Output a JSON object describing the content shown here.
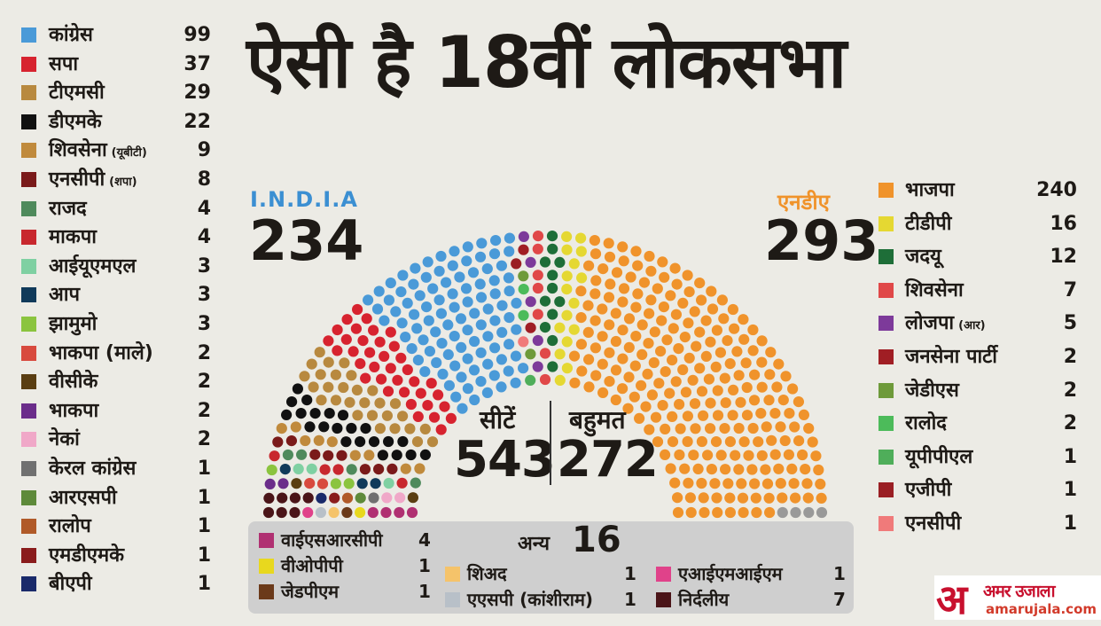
{
  "title": "ऐसी है 18वीं लोकसभा",
  "india": {
    "label": "I.N.D.I.A",
    "total": "234"
  },
  "nda": {
    "label": "एनडीए",
    "total": "293"
  },
  "center": {
    "seats_label": "सीटें",
    "seats": "543",
    "majority_label": "बहुमत",
    "majority": "272"
  },
  "others_box": {
    "label": "अन्य",
    "total": "16"
  },
  "logo": {
    "mark": "अ",
    "name": "अमर उजाला",
    "url": "amarujala.com"
  },
  "chart_data": {
    "type": "parliament-seats",
    "title": "ऐसी है 18वीं लोकसभा",
    "total_seats": 543,
    "majority": 272,
    "blocs": [
      {
        "name": "I.N.D.I.A",
        "total": 234,
        "color": "#3b8fd2"
      },
      {
        "name": "एनडीए",
        "total": 293,
        "color": "#f0932b"
      },
      {
        "name": "अन्य",
        "total": 16
      }
    ],
    "india_parties": [
      {
        "name": "कांग्रेस",
        "seats": 99,
        "color": "#4a9ad8"
      },
      {
        "name": "सपा",
        "seats": 37,
        "color": "#d7232f"
      },
      {
        "name": "टीएमसी",
        "seats": 29,
        "color": "#b8893f"
      },
      {
        "name": "डीएमके",
        "seats": 22,
        "color": "#111111"
      },
      {
        "name": "शिवसेना",
        "note": "(यूबीटी)",
        "seats": 9,
        "color": "#c08a3c"
      },
      {
        "name": "एनसीपी",
        "note": "(शपा)",
        "seats": 8,
        "color": "#7a1a1a"
      },
      {
        "name": "राजद",
        "seats": 4,
        "color": "#4f8a5c"
      },
      {
        "name": "माकपा",
        "seats": 4,
        "color": "#c8282e"
      },
      {
        "name": "आईयूएमएल",
        "seats": 3,
        "color": "#7fd0a2"
      },
      {
        "name": "आप",
        "seats": 3,
        "color": "#103a5a"
      },
      {
        "name": "झामुमो",
        "seats": 3,
        "color": "#8bc43f"
      },
      {
        "name": "भाकपा (माले)",
        "seats": 2,
        "color": "#d84a3e"
      },
      {
        "name": "वीसीके",
        "seats": 2,
        "color": "#5a3e12"
      },
      {
        "name": "भाकपा",
        "seats": 2,
        "color": "#6b2d8a"
      },
      {
        "name": "नेकां",
        "seats": 2,
        "color": "#f0a8c8"
      },
      {
        "name": "केरल कांग्रेस",
        "seats": 1,
        "color": "#707070"
      },
      {
        "name": "आरएसपी",
        "seats": 1,
        "color": "#5e8a3a"
      },
      {
        "name": "रालोप",
        "seats": 1,
        "color": "#b05a28"
      },
      {
        "name": "एमडीएमके",
        "seats": 1,
        "color": "#8a1c1c"
      },
      {
        "name": "बीएपी",
        "seats": 1,
        "color": "#1a2a6a"
      }
    ],
    "nda_parties": [
      {
        "name": "भाजपा",
        "seats": 240,
        "color": "#f0932b"
      },
      {
        "name": "टीडीपी",
        "seats": 16,
        "color": "#e5d832"
      },
      {
        "name": "जदयू",
        "seats": 12,
        "color": "#1e6e38"
      },
      {
        "name": "शिवसेना",
        "seats": 7,
        "color": "#e04848"
      },
      {
        "name": "लोजपा",
        "note": "(आर)",
        "seats": 5,
        "color": "#7d3a9a"
      },
      {
        "name": "जनसेना पार्टी",
        "seats": 2,
        "color": "#a01e24"
      },
      {
        "name": "जेडीएस",
        "seats": 2,
        "color": "#6e9a3a"
      },
      {
        "name": "रालोद",
        "seats": 2,
        "color": "#4cbb5a"
      },
      {
        "name": "यूपीपीएल",
        "seats": 1,
        "color": "#4fae5a"
      },
      {
        "name": "एजीपी",
        "seats": 1,
        "color": "#9a1f24"
      },
      {
        "name": "एनसीपी",
        "seats": 1,
        "color": "#f07a7a"
      }
    ],
    "other_parties": [
      {
        "name": "वाईएसआरसीपी",
        "seats": 4,
        "color": "#b03072"
      },
      {
        "name": "वीओपीपी",
        "seats": 1,
        "color": "#e8d81e"
      },
      {
        "name": "जेडपीएम",
        "seats": 1,
        "color": "#6b3a1a"
      },
      {
        "name": "शिअद",
        "seats": 1,
        "color": "#f5c36a"
      },
      {
        "name": "एएसपी (कांशीराम)",
        "seats": 1,
        "color": "#b8c0c8"
      },
      {
        "name": "एआईएमआईएम",
        "seats": 1,
        "color": "#e0428a"
      },
      {
        "name": "निर्दलीय",
        "seats": 7,
        "color": "#4a1418"
      }
    ]
  }
}
